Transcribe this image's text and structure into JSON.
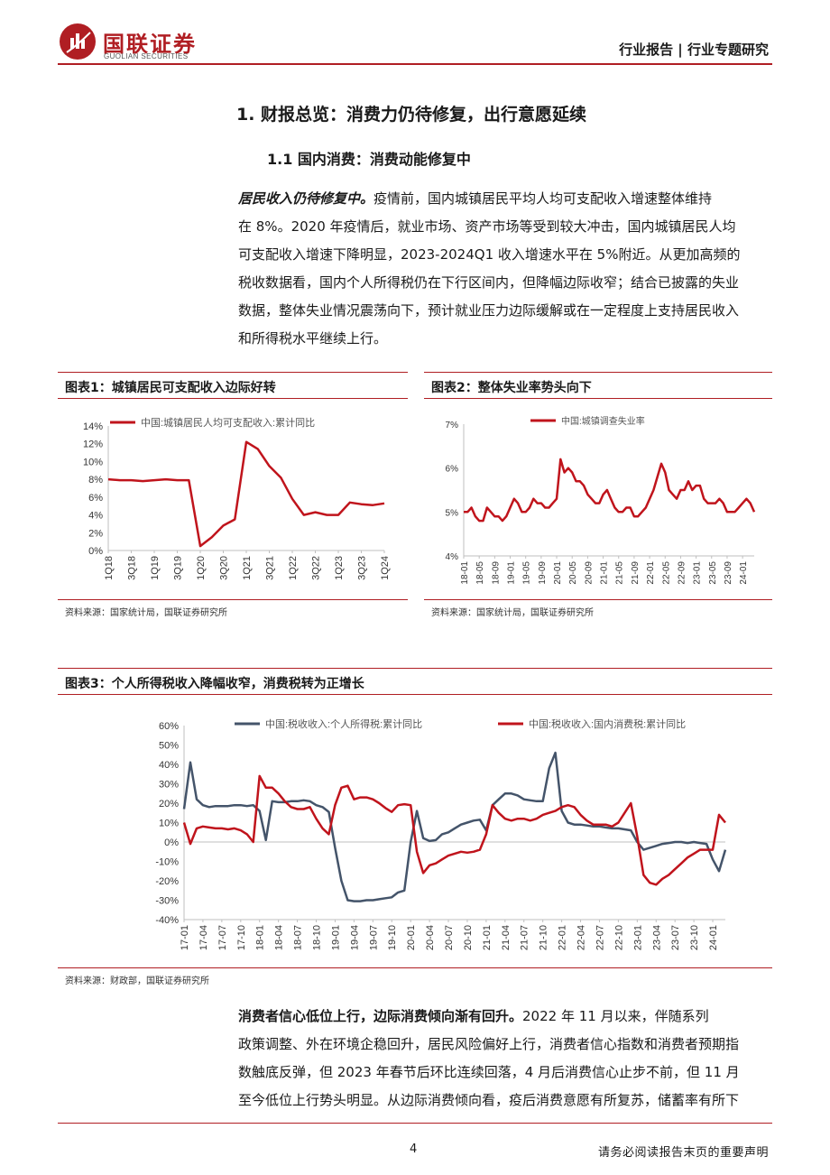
{
  "header": {
    "logo_cn": "国联证券",
    "logo_en": "GUOLIAN SECURITIES",
    "report_type": "行业报告 | 行业专题研究"
  },
  "section": {
    "h1": "1.  财报总览：消费力仍待修复，出行意愿延续",
    "h2": "1.1 国内消费：消费动能修复中"
  },
  "paragraph1": {
    "lead": "居民收入仍待修复中。",
    "lines": [
      "疫情前，国内城镇居民平均人均可支配收入增速整体维持",
      "在 8%。2020 年疫情后，就业市场、资产市场等受到较大冲击，国内城镇居民人均",
      "可支配收入增速下降明显，2023-2024Q1 收入增速水平在 5%附近。从更加高频的",
      "税收数据看，国内个人所得税仍在下行区间内，但降幅边际收窄；结合已披露的失业",
      "数据，整体失业情况震荡向下，预计就业压力边际缓解或在一定程度上支持居民收入",
      "和所得税水平继续上行。"
    ]
  },
  "figures": {
    "fig1": {
      "title": "图表1：城镇居民可支配收入边际好转",
      "source": "资料来源：国家统计局，国联证券研究所"
    },
    "fig2": {
      "title": "图表2：整体失业率势头向下",
      "source": "资料来源：国家统计局，国联证券研究所"
    },
    "fig3": {
      "title": "图表3：个人所得税收入降幅收窄，消费税转为正增长",
      "source": "资料来源：财政部，国联证券研究所"
    }
  },
  "paragraph2": {
    "lead": "消费者信心低位上行，边际消费倾向渐有回升。",
    "lines": [
      "2022 年 11 月以来，伴随系列",
      "政策调整、外在环境企稳回升，居民风险偏好上行，消费者信心指数和消费者预期指",
      "数触底反弹，但 2023 年春节后环比连续回落，4 月后消费信心止步不前，但 11 月",
      "至今低位上行势头明显。从边际消费倾向看，疫后消费意愿有所复苏，储蓄率有所下"
    ]
  },
  "footer": {
    "page": "4",
    "disclaimer": "请务必阅读报告末页的重要声明"
  },
  "colors": {
    "brand_red": "#b01e23",
    "series_red": "#c0141c",
    "series_navy": "#44546a"
  },
  "chart_data": [
    {
      "type": "line",
      "title": "",
      "series": [
        {
          "name": "中国:城镇居民人均可支配收入:累计同比",
          "x": [
            "1Q18",
            "2Q18",
            "3Q18",
            "4Q18",
            "1Q19",
            "2Q19",
            "3Q19",
            "4Q19",
            "1Q20",
            "2Q20",
            "3Q20",
            "4Q20",
            "1Q21",
            "2Q21",
            "3Q21",
            "4Q21",
            "1Q22",
            "2Q22",
            "3Q22",
            "4Q22",
            "1Q23",
            "2Q23",
            "3Q23",
            "4Q23",
            "1Q24"
          ],
          "values": [
            8.0,
            7.9,
            7.9,
            7.8,
            7.9,
            8.0,
            7.9,
            7.9,
            0.5,
            1.5,
            2.8,
            3.5,
            12.2,
            11.4,
            9.5,
            8.2,
            5.8,
            4.0,
            4.3,
            4.0,
            4.0,
            5.4,
            5.2,
            5.1,
            5.3
          ]
        }
      ],
      "xticks": [
        "1Q18",
        "3Q18",
        "1Q19",
        "3Q19",
        "1Q20",
        "3Q20",
        "1Q21",
        "3Q21",
        "1Q22",
        "3Q22",
        "1Q23",
        "3Q23",
        "1Q24"
      ],
      "yticks": [
        "0%",
        "2%",
        "4%",
        "6%",
        "8%",
        "10%",
        "12%",
        "14%"
      ],
      "ylim": [
        0,
        14
      ],
      "legend": "top"
    },
    {
      "type": "line",
      "title": "",
      "series": [
        {
          "name": "中国:城镇调查失业率",
          "x": [
            "18-01",
            "18-02",
            "18-03",
            "18-04",
            "18-05",
            "18-06",
            "18-07",
            "18-08",
            "18-09",
            "18-10",
            "18-11",
            "18-12",
            "19-01",
            "19-02",
            "19-03",
            "19-04",
            "19-05",
            "19-06",
            "19-07",
            "19-08",
            "19-09",
            "19-10",
            "19-11",
            "19-12",
            "20-01",
            "20-02",
            "20-03",
            "20-04",
            "20-05",
            "20-06",
            "20-07",
            "20-08",
            "20-09",
            "20-10",
            "20-11",
            "20-12",
            "21-01",
            "21-02",
            "21-03",
            "21-04",
            "21-05",
            "21-06",
            "21-07",
            "21-08",
            "21-09",
            "21-10",
            "21-11",
            "21-12",
            "22-01",
            "22-02",
            "22-03",
            "22-04",
            "22-05",
            "22-06",
            "22-07",
            "22-08",
            "22-09",
            "22-10",
            "22-11",
            "22-12",
            "23-01",
            "23-02",
            "23-03",
            "23-04",
            "23-05",
            "23-06",
            "23-07",
            "23-08",
            "23-09",
            "23-10",
            "23-11",
            "23-12",
            "24-01",
            "24-02",
            "24-03",
            "24-04"
          ],
          "values": [
            5.0,
            5.0,
            5.1,
            4.9,
            4.8,
            4.8,
            5.1,
            5.0,
            4.9,
            4.9,
            4.8,
            4.9,
            5.1,
            5.3,
            5.2,
            5.0,
            5.0,
            5.1,
            5.3,
            5.2,
            5.2,
            5.1,
            5.1,
            5.2,
            5.3,
            6.2,
            5.9,
            6.0,
            5.9,
            5.7,
            5.7,
            5.6,
            5.4,
            5.3,
            5.2,
            5.2,
            5.4,
            5.5,
            5.3,
            5.1,
            5.0,
            5.0,
            5.1,
            5.1,
            4.9,
            4.9,
            5.0,
            5.1,
            5.3,
            5.5,
            5.8,
            6.1,
            5.9,
            5.5,
            5.4,
            5.3,
            5.5,
            5.5,
            5.7,
            5.5,
            5.6,
            5.6,
            5.3,
            5.2,
            5.2,
            5.2,
            5.3,
            5.2,
            5.0,
            5.0,
            5.0,
            5.1,
            5.2,
            5.3,
            5.2,
            5.0
          ],
          "note": "approximate"
        }
      ],
      "xticks": [
        "18-01",
        "18-05",
        "18-09",
        "19-01",
        "19-05",
        "19-09",
        "20-01",
        "20-05",
        "20-09",
        "21-01",
        "21-05",
        "21-09",
        "22-01",
        "22-05",
        "22-09",
        "23-01",
        "23-05",
        "23-09",
        "24-01"
      ],
      "yticks": [
        "4%",
        "5%",
        "6%",
        "7%"
      ],
      "ylim": [
        4,
        7
      ],
      "legend": "top"
    },
    {
      "type": "line",
      "title": "",
      "series": [
        {
          "name": "中国:税收收入:个人所得税:累计同比",
          "points": [
            [
              "17-01",
              17
            ],
            [
              "17-02",
              41
            ],
            [
              "17-03",
              22
            ],
            [
              "17-04",
              19
            ],
            [
              "17-05",
              18
            ],
            [
              "17-06",
              18.5
            ],
            [
              "17-07",
              18.5
            ],
            [
              "17-08",
              18.5
            ],
            [
              "17-09",
              19
            ],
            [
              "17-10",
              19
            ],
            [
              "17-11",
              18.5
            ],
            [
              "17-12",
              19
            ],
            [
              "18-01",
              16
            ],
            [
              "18-02",
              1
            ],
            [
              "18-03",
              21
            ],
            [
              "18-04",
              20.5
            ],
            [
              "18-05",
              20.5
            ],
            [
              "18-06",
              21
            ],
            [
              "18-07",
              21
            ],
            [
              "18-08",
              21.5
            ],
            [
              "18-09",
              21
            ],
            [
              "18-10",
              19
            ],
            [
              "18-11",
              18
            ],
            [
              "18-12",
              15.5
            ],
            [
              "19-01",
              -3
            ],
            [
              "19-02",
              -20
            ],
            [
              "19-03",
              -30
            ],
            [
              "19-04",
              -30.5
            ],
            [
              "19-05",
              -30.5
            ],
            [
              "19-06",
              -30
            ],
            [
              "19-07",
              -30
            ],
            [
              "19-08",
              -29.5
            ],
            [
              "19-09",
              -29
            ],
            [
              "19-10",
              -28.5
            ],
            [
              "19-11",
              -26
            ],
            [
              "19-12",
              -25
            ],
            [
              "20-01",
              0
            ],
            [
              "20-02",
              16
            ],
            [
              "20-03",
              2
            ],
            [
              "20-04",
              0.5
            ],
            [
              "20-05",
              1
            ],
            [
              "20-06",
              4
            ],
            [
              "20-07",
              5
            ],
            [
              "20-08",
              7
            ],
            [
              "20-09",
              9
            ],
            [
              "20-10",
              10
            ],
            [
              "20-11",
              11
            ],
            [
              "20-12",
              11.5
            ],
            [
              "21-01",
              6
            ],
            [
              "21-02",
              19
            ],
            [
              "21-03",
              22
            ],
            [
              "21-04",
              25
            ],
            [
              "21-05",
              25
            ],
            [
              "21-06",
              24
            ],
            [
              "21-07",
              22
            ],
            [
              "21-08",
              21.5
            ],
            [
              "21-09",
              21
            ],
            [
              "21-10",
              21
            ],
            [
              "21-11",
              38
            ],
            [
              "21-12",
              46
            ],
            [
              "22-01",
              16
            ],
            [
              "22-02",
              10
            ],
            [
              "22-03",
              9
            ],
            [
              "22-04",
              9
            ],
            [
              "22-05",
              8.5
            ],
            [
              "22-06",
              8
            ],
            [
              "22-07",
              8
            ],
            [
              "22-08",
              7.5
            ],
            [
              "22-09",
              7
            ],
            [
              "22-10",
              7
            ],
            [
              "22-11",
              6.5
            ],
            [
              "22-12",
              6
            ],
            [
              "23-01",
              0
            ],
            [
              "23-02",
              -4
            ],
            [
              "23-03",
              -3
            ],
            [
              "23-04",
              -2
            ],
            [
              "23-05",
              -1
            ],
            [
              "23-06",
              -0.5
            ],
            [
              "23-07",
              0
            ],
            [
              "23-08",
              0
            ],
            [
              "23-09",
              -0.5
            ],
            [
              "23-10",
              0
            ],
            [
              "23-11",
              -0.5
            ],
            [
              "23-12",
              -1
            ],
            [
              "24-01",
              -9
            ],
            [
              "24-02",
              -15
            ],
            [
              "24-03",
              -4
            ]
          ]
        },
        {
          "name": "中国:税收收入:国内消费税:累计同比",
          "points": [
            [
              "17-01",
              10
            ],
            [
              "17-02",
              -1
            ],
            [
              "17-03",
              7
            ],
            [
              "17-04",
              8
            ],
            [
              "17-05",
              7.5
            ],
            [
              "17-06",
              7
            ],
            [
              "17-07",
              7
            ],
            [
              "17-08",
              6.5
            ],
            [
              "17-09",
              7
            ],
            [
              "17-10",
              6
            ],
            [
              "17-11",
              4
            ],
            [
              "17-12",
              0
            ],
            [
              "18-01",
              34
            ],
            [
              "18-02",
              28
            ],
            [
              "18-03",
              28
            ],
            [
              "18-04",
              25
            ],
            [
              "18-05",
              21
            ],
            [
              "18-06",
              18
            ],
            [
              "18-07",
              17
            ],
            [
              "18-08",
              17
            ],
            [
              "18-09",
              18
            ],
            [
              "18-10",
              12
            ],
            [
              "18-11",
              7
            ],
            [
              "18-12",
              4
            ],
            [
              "19-01",
              19
            ],
            [
              "19-02",
              28
            ],
            [
              "19-03",
              29
            ],
            [
              "19-04",
              22
            ],
            [
              "19-05",
              23
            ],
            [
              "19-06",
              23
            ],
            [
              "19-07",
              22
            ],
            [
              "19-08",
              20
            ],
            [
              "19-09",
              17.5
            ],
            [
              "19-10",
              15.5
            ],
            [
              "19-11",
              19
            ],
            [
              "19-12",
              19.5
            ],
            [
              "20-01",
              19
            ],
            [
              "20-02",
              -5
            ],
            [
              "20-03",
              -16
            ],
            [
              "20-04",
              -12
            ],
            [
              "20-05",
              -11
            ],
            [
              "20-06",
              -9
            ],
            [
              "20-07",
              -7
            ],
            [
              "20-08",
              -6
            ],
            [
              "20-09",
              -5
            ],
            [
              "20-10",
              -5.5
            ],
            [
              "20-11",
              -5
            ],
            [
              "20-12",
              -4
            ],
            [
              "21-01",
              4
            ],
            [
              "21-02",
              19
            ],
            [
              "21-03",
              15
            ],
            [
              "21-04",
              12
            ],
            [
              "21-05",
              11
            ],
            [
              "21-06",
              12
            ],
            [
              "21-07",
              12
            ],
            [
              "21-08",
              11
            ],
            [
              "21-09",
              12
            ],
            [
              "21-10",
              14
            ],
            [
              "21-11",
              15
            ],
            [
              "21-12",
              16
            ],
            [
              "22-01",
              18
            ],
            [
              "22-02",
              19
            ],
            [
              "22-03",
              18
            ],
            [
              "22-04",
              14
            ],
            [
              "22-05",
              11
            ],
            [
              "22-06",
              9
            ],
            [
              "22-07",
              9
            ],
            [
              "22-08",
              9
            ],
            [
              "22-09",
              8
            ],
            [
              "22-10",
              10
            ],
            [
              "22-11",
              15
            ],
            [
              "22-12",
              20
            ],
            [
              "23-01",
              3
            ],
            [
              "23-02",
              -17
            ],
            [
              "23-03",
              -21
            ],
            [
              "23-04",
              -22
            ],
            [
              "23-05",
              -19
            ],
            [
              "23-06",
              -17
            ],
            [
              "23-07",
              -14
            ],
            [
              "23-08",
              -11
            ],
            [
              "23-09",
              -8
            ],
            [
              "23-10",
              -6
            ],
            [
              "23-11",
              -4
            ],
            [
              "23-12",
              -4
            ],
            [
              "24-01",
              -4
            ],
            [
              "24-02",
              14
            ],
            [
              "24-03",
              10
            ]
          ]
        }
      ],
      "xticks": [
        "17-01",
        "17-04",
        "17-07",
        "17-10",
        "18-01",
        "18-04",
        "18-07",
        "18-10",
        "19-01",
        "19-04",
        "19-07",
        "19-10",
        "20-01",
        "20-04",
        "20-07",
        "20-10",
        "21-01",
        "21-04",
        "21-07",
        "21-10",
        "22-01",
        "22-04",
        "22-07",
        "22-10",
        "23-01",
        "23-04",
        "23-07",
        "23-10",
        "24-01"
      ],
      "yticks": [
        "-40%",
        "-30%",
        "-20%",
        "-10%",
        "0%",
        "10%",
        "20%",
        "30%",
        "40%",
        "50%",
        "60%"
      ],
      "ylim": [
        -40,
        60
      ],
      "legend": "top"
    }
  ]
}
